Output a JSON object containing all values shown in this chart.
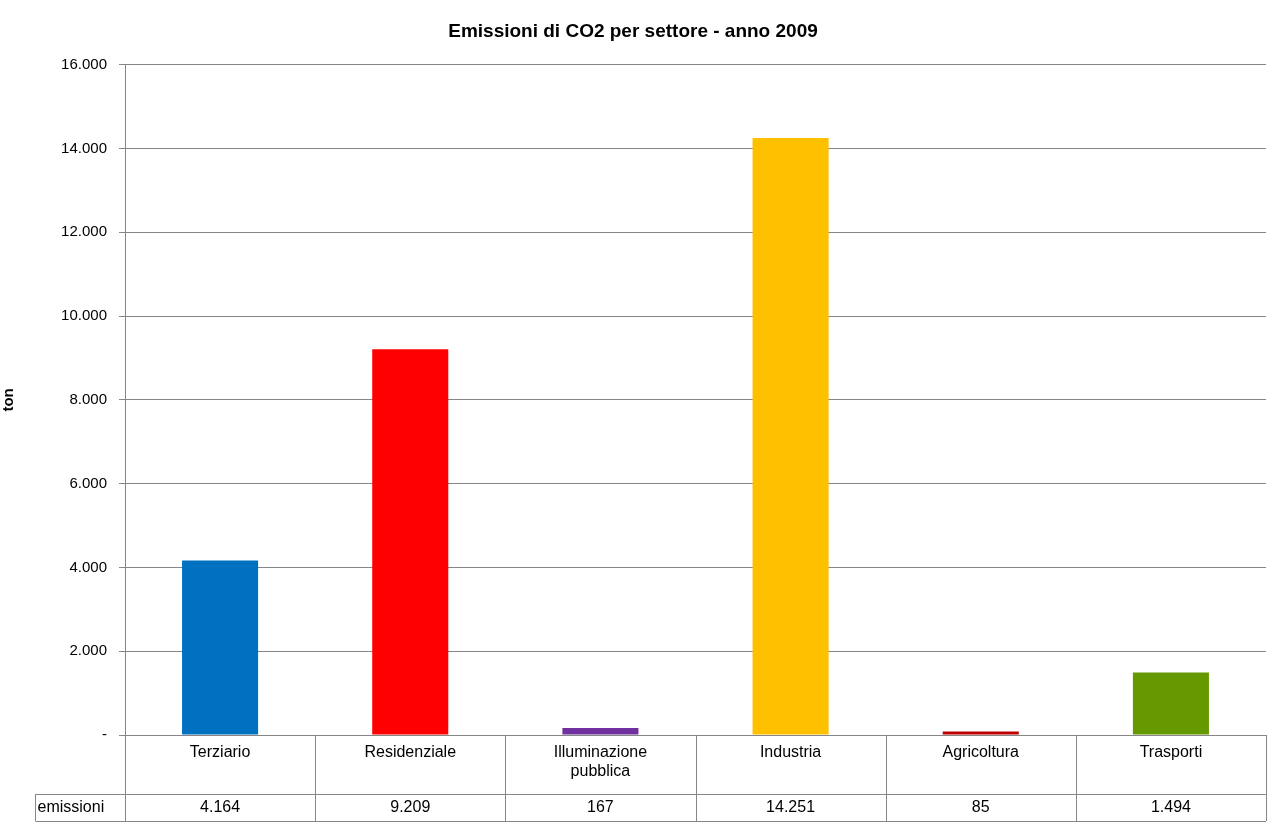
{
  "chart_data": {
    "type": "bar",
    "title": "Emissioni di CO2 per settore - anno 2009",
    "ylabel": "ton",
    "categories": [
      "Terziario",
      "Residenziale",
      "Illuminazione pubblica",
      "Industria",
      "Agricoltura",
      "Trasporti"
    ],
    "series": [
      {
        "name": "emissioni",
        "values": [
          4164,
          9209,
          167,
          14251,
          85,
          1494
        ],
        "colors": [
          "#0070c0",
          "#ff0000",
          "#7030a0",
          "#ffc000",
          "#c00000",
          "#669900"
        ],
        "value_labels": [
          "4.164",
          "9.209",
          "167",
          "14.251",
          "85",
          "1.494"
        ]
      }
    ],
    "ylim": [
      0,
      16000
    ],
    "yticks": [
      {
        "value": 0,
        "label": "-"
      },
      {
        "value": 2000,
        "label": "2.000"
      },
      {
        "value": 4000,
        "label": "4.000"
      },
      {
        "value": 6000,
        "label": "6.000"
      },
      {
        "value": 8000,
        "label": "8.000"
      },
      {
        "value": 10000,
        "label": "10.000"
      },
      {
        "value": 12000,
        "label": "12.000"
      },
      {
        "value": 14000,
        "label": "14.000"
      },
      {
        "value": 16000,
        "label": "16.000"
      }
    ],
    "grid": "y"
  }
}
